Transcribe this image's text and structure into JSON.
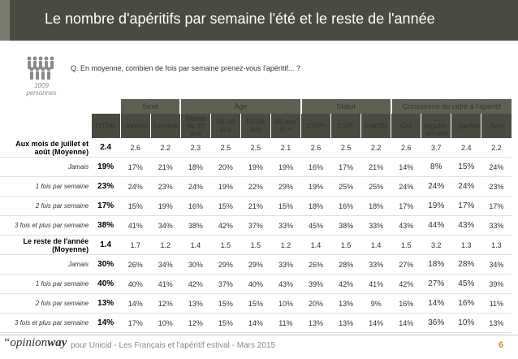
{
  "title": "Le nombre d'apéritifs par semaine l'été et le reste de l'année",
  "sample": {
    "count": "1009",
    "unit": "personnes"
  },
  "question": "Q. En moyenne, combien de fois par semaine prenez-vous l'apéritif... ?",
  "groups": [
    "Sexe",
    "Âge",
    "Statut",
    "Consomme du cidre à l'apéritif"
  ],
  "columns": [
    "TOTAL",
    "Homme",
    "Femme",
    "Moins de 35 ans",
    "35-49 ans",
    "50-64 ans",
    "65 ans et +",
    "CSP+",
    "CSP-",
    "Inactifs",
    "Oui",
    "…réguliè-rement",
    "…parfois",
    "Non"
  ],
  "sections": [
    {
      "label": "Aux mois de juillet et août (Moyenne)",
      "total": "2.4",
      "values": [
        "2.6",
        "2.2",
        "2.3",
        "2.5",
        "2.5",
        "2.1",
        "2.6",
        "2.5",
        "2.2",
        "2.6",
        "3.7",
        "2.4",
        "2.2"
      ],
      "rows": [
        {
          "label": "Jamais",
          "total": "19%",
          "values": [
            "17%",
            "21%",
            "18%",
            "20%",
            "19%",
            "19%",
            "16%",
            "17%",
            "21%",
            "14%",
            "8%",
            "15%",
            "24%"
          ]
        },
        {
          "label": "1 fois par semaine",
          "total": "23%",
          "values": [
            "24%",
            "23%",
            "24%",
            "19%",
            "22%",
            "29%",
            "19%",
            "25%",
            "25%",
            "24%",
            "24%",
            "24%",
            "23%"
          ]
        },
        {
          "label": "2 fois par semaine",
          "total": "17%",
          "values": [
            "15%",
            "19%",
            "16%",
            "15%",
            "21%",
            "15%",
            "18%",
            "16%",
            "18%",
            "17%",
            "19%",
            "17%",
            "17%"
          ]
        },
        {
          "label": "3 fois et plus par semaine",
          "total": "38%",
          "values": [
            "41%",
            "34%",
            "38%",
            "42%",
            "37%",
            "33%",
            "45%",
            "38%",
            "33%",
            "43%",
            "44%",
            "43%",
            "33%"
          ]
        }
      ]
    },
    {
      "label": "Le reste de l'année (Moyenne)",
      "total": "1.4",
      "values": [
        "1.7",
        "1.2",
        "1.4",
        "1.5",
        "1.5",
        "1.2",
        "1.4",
        "1.5",
        "1.4",
        "1.5",
        "3.2",
        "1.3",
        "1.3"
      ],
      "rows": [
        {
          "label": "Jamais",
          "total": "30%",
          "values": [
            "26%",
            "34%",
            "30%",
            "29%",
            "29%",
            "33%",
            "26%",
            "28%",
            "33%",
            "27%",
            "18%",
            "28%",
            "34%"
          ]
        },
        {
          "label": "1 fois par semaine",
          "total": "40%",
          "values": [
            "40%",
            "41%",
            "42%",
            "37%",
            "40%",
            "43%",
            "39%",
            "42%",
            "41%",
            "42%",
            "27%",
            "45%",
            "39%"
          ]
        },
        {
          "label": "2 fois par semaine",
          "total": "13%",
          "values": [
            "14%",
            "12%",
            "13%",
            "15%",
            "15%",
            "10%",
            "20%",
            "13%",
            "9%",
            "16%",
            "14%",
            "16%",
            "11%"
          ]
        },
        {
          "label": "3 fois et plus par semaine",
          "total": "14%",
          "values": [
            "17%",
            "10%",
            "12%",
            "15%",
            "14%",
            "11%",
            "13%",
            "13%",
            "14%",
            "14%",
            "36%",
            "10%",
            "13%"
          ]
        }
      ]
    }
  ],
  "footer": {
    "logo_open": "“",
    "logo_brand": "opinion",
    "logo_brand_strong": "way",
    "text": "pour Unicid - Les Français et l'apéritif estival - Mars 2015",
    "page": "6"
  }
}
